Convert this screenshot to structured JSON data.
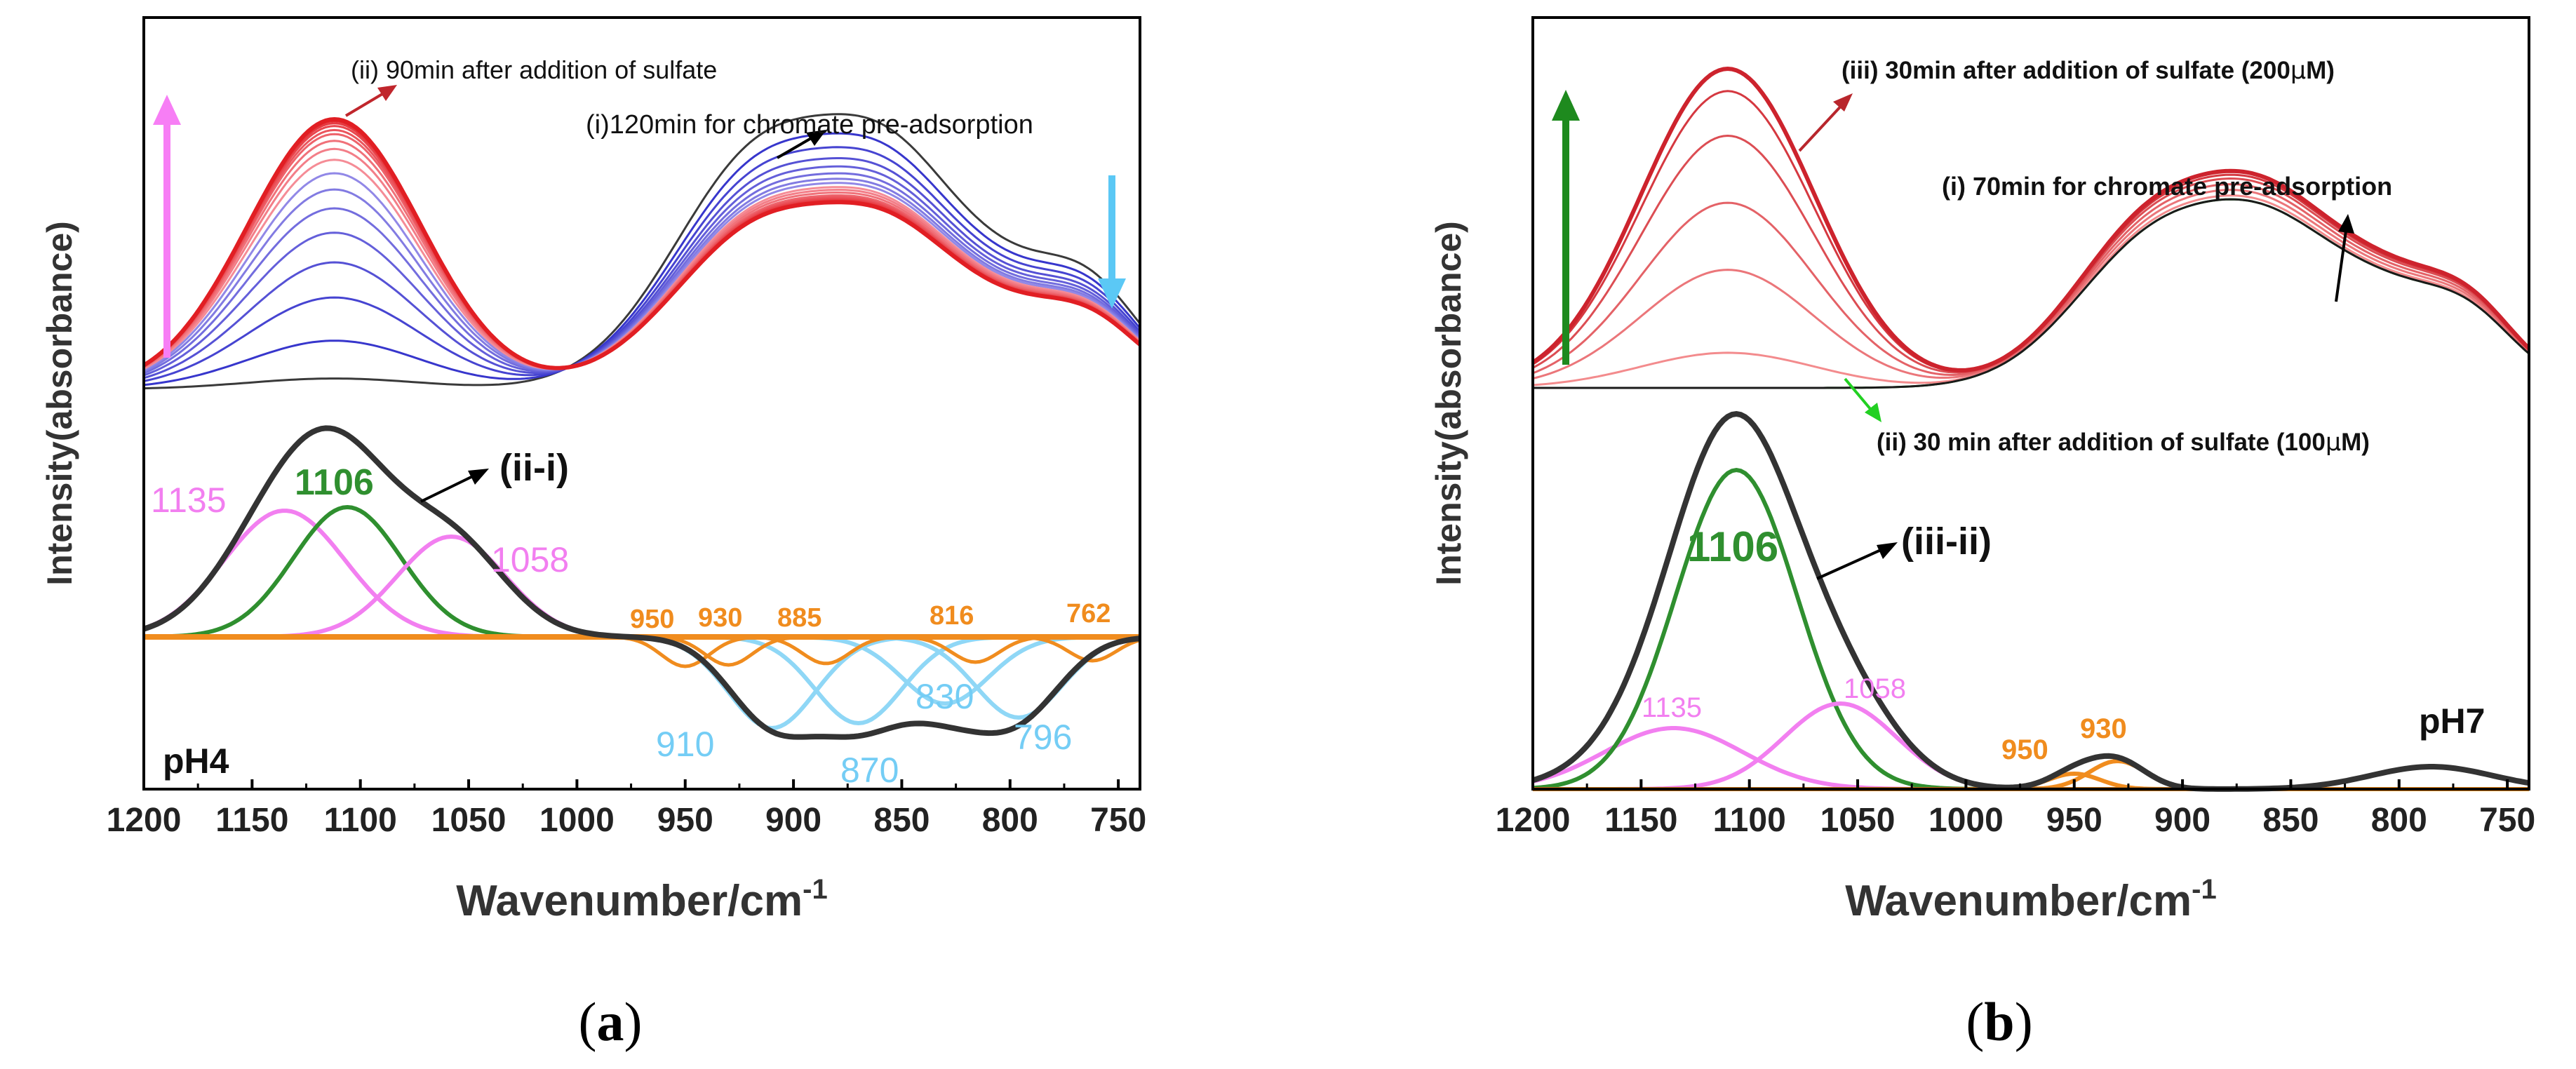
{
  "chart_data": [
    {
      "type": "line",
      "panel_label": {
        "open": "(",
        "letter": "a",
        "close": ")"
      },
      "xlabel": {
        "main": "Wavenumber/cm",
        "sup": "-1"
      },
      "ylabel": "Intensity(absorbance)",
      "xlim": [
        1200,
        740
      ],
      "xticks": [
        1200,
        1150,
        1100,
        1050,
        1000,
        950,
        900,
        850,
        800,
        750
      ],
      "ph_label": "pH4",
      "upper_series": {
        "first_label": "(i)120min for chromate pre-adsorption",
        "last_label": "(ii) 90min after addition of sulfate",
        "count": 22,
        "sulfate_scale": [
          0.04,
          0.18,
          0.34,
          0.47,
          0.58,
          0.67,
          0.74,
          0.8,
          0.85,
          0.89,
          0.92,
          0.945,
          0.96,
          0.975,
          0.985,
          0.993,
          1.0
        ],
        "chromate_scale": [
          1.0,
          0.93,
          0.88,
          0.84,
          0.81,
          0.785,
          0.765,
          0.75,
          0.735,
          0.725,
          0.715,
          0.705,
          0.698,
          0.692,
          0.687,
          0.683,
          0.68
        ]
      },
      "difference": {
        "label": "(ii-i)",
        "positive_peaks": [
          {
            "center": 1135,
            "label": "1135",
            "color": "#f27ff0"
          },
          {
            "center": 1106,
            "label": "1106",
            "color": "#2f8f2f"
          },
          {
            "center": 1058,
            "label": "1058",
            "color": "#f27ff0"
          }
        ],
        "negative_peaks_blue": [
          {
            "center": 910,
            "label": "910"
          },
          {
            "center": 870,
            "label": "870"
          },
          {
            "center": 830,
            "label": "830"
          },
          {
            "center": 796,
            "label": "796"
          }
        ],
        "orange_peaks": [
          "950",
          "930",
          "885",
          "816",
          "762"
        ]
      },
      "arrows": {
        "left_arrow_color": "#f77ef5",
        "right_arrow_color": "#5bc8f5"
      }
    },
    {
      "type": "line",
      "panel_label": {
        "open": "(",
        "letter": "b",
        "close": ")"
      },
      "xlabel": {
        "main": "Wavenumber/cm",
        "sup": "-1"
      },
      "ylabel": "Intensity(absorbance)",
      "xlim": [
        1200,
        740
      ],
      "xticks": [
        1200,
        1150,
        1100,
        1050,
        1000,
        950,
        900,
        850,
        800,
        750
      ],
      "ph_label": "pH7",
      "upper_series": {
        "first_label": "(i) 70min for chromate pre-adsorption",
        "middle_label": "(ii) 30 min after addition of sulfate (100",
        "last_label": "(iii) 30min after addition of sulfate (200",
        "unit_mu": "μ",
        "unit_m": "M",
        "unit_close": ")",
        "sulfate_scale": [
          0.0,
          0.11,
          0.37,
          0.58,
          0.79,
          0.93,
          1.0
        ],
        "chromate_scale": [
          1.0,
          1.02,
          1.05,
          1.08,
          1.11,
          1.13,
          1.15
        ]
      },
      "difference": {
        "label": "(iii-ii)",
        "peaks": [
          {
            "center": 1135,
            "label": "1135",
            "color": "#f27ff0"
          },
          {
            "center": 1106,
            "label": "1106",
            "color": "#2f8f2f"
          },
          {
            "center": 1058,
            "label": "1058",
            "color": "#f27ff0"
          },
          {
            "center": 950,
            "label": "950",
            "color": "#f08c1e"
          },
          {
            "center": 930,
            "label": "930",
            "color": "#f08c1e"
          }
        ]
      },
      "arrows": {
        "left_arrow_color": "#1e8a1e"
      }
    }
  ]
}
